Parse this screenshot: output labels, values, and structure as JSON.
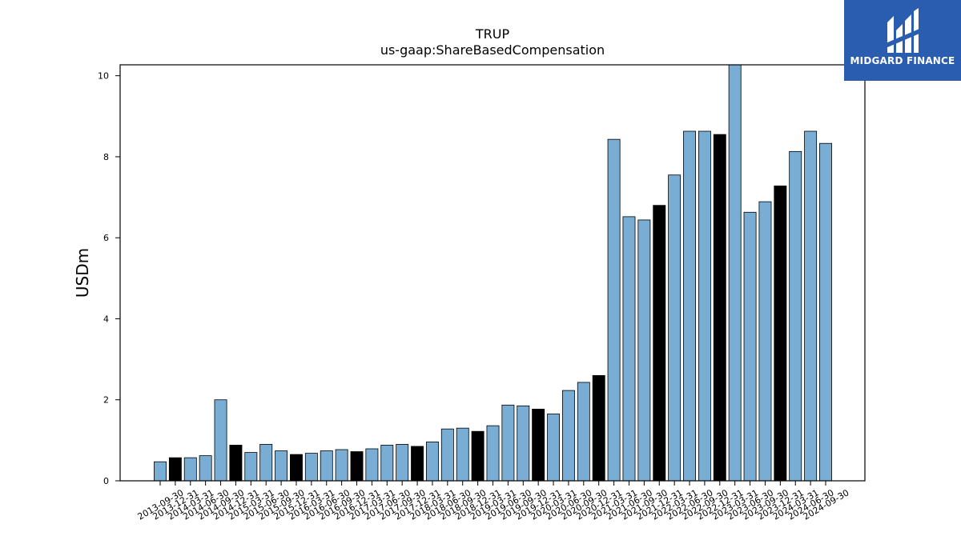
{
  "brand": {
    "logo_text": "MIDGARD FINANCE",
    "color": "#2a5db0"
  },
  "colors": {
    "bar": "#7aadd3",
    "bar_highlight": "#000000",
    "edge": "#000000"
  },
  "chart_data": {
    "type": "bar",
    "title": "TRUP",
    "subtitle": "us-gaap:ShareBasedCompensation",
    "xlabel": "",
    "ylabel": "USDm",
    "ylim": [
      0,
      10.27
    ],
    "yticks": [
      0,
      2,
      4,
      6,
      8,
      10
    ],
    "grid": false,
    "categories": [
      "2013-09-30",
      "2013-12-31",
      "2014-03-31",
      "2014-06-30",
      "2014-09-30",
      "2014-12-31",
      "2015-03-31",
      "2015-06-30",
      "2015-09-30",
      "2015-12-31",
      "2016-03-31",
      "2016-06-30",
      "2016-09-30",
      "2016-12-31",
      "2017-03-31",
      "2017-06-30",
      "2017-09-30",
      "2017-12-31",
      "2018-03-31",
      "2018-06-30",
      "2018-09-30",
      "2018-12-31",
      "2019-03-31",
      "2019-06-30",
      "2019-09-30",
      "2019-12-31",
      "2020-03-31",
      "2020-06-30",
      "2020-09-30",
      "2020-12-31",
      "2021-03-31",
      "2021-06-30",
      "2021-09-30",
      "2021-12-31",
      "2022-03-31",
      "2022-06-30",
      "2022-09-30",
      "2022-12-31",
      "2023-03-31",
      "2023-06-30",
      "2023-09-30",
      "2023-12-31",
      "2024-03-31",
      "2024-06-30",
      "2024-09-30"
    ],
    "values": [
      0.47,
      0.57,
      0.57,
      0.62,
      2.0,
      0.88,
      0.7,
      0.9,
      0.74,
      0.65,
      0.68,
      0.74,
      0.77,
      0.72,
      0.79,
      0.88,
      0.9,
      0.85,
      0.96,
      1.28,
      1.3,
      1.22,
      1.36,
      1.87,
      1.85,
      1.77,
      1.65,
      2.23,
      2.43,
      2.6,
      8.43,
      6.52,
      6.44,
      6.8,
      7.55,
      8.63,
      8.63,
      8.55,
      10.3,
      6.63,
      6.89,
      7.28,
      8.13,
      8.63,
      8.33
    ],
    "highlighted": [
      false,
      true,
      false,
      false,
      false,
      true,
      false,
      false,
      false,
      true,
      false,
      false,
      false,
      true,
      false,
      false,
      false,
      true,
      false,
      false,
      false,
      true,
      false,
      false,
      false,
      true,
      false,
      false,
      false,
      true,
      false,
      false,
      false,
      true,
      false,
      false,
      false,
      true,
      false,
      false,
      false,
      true,
      false,
      false,
      false
    ]
  }
}
